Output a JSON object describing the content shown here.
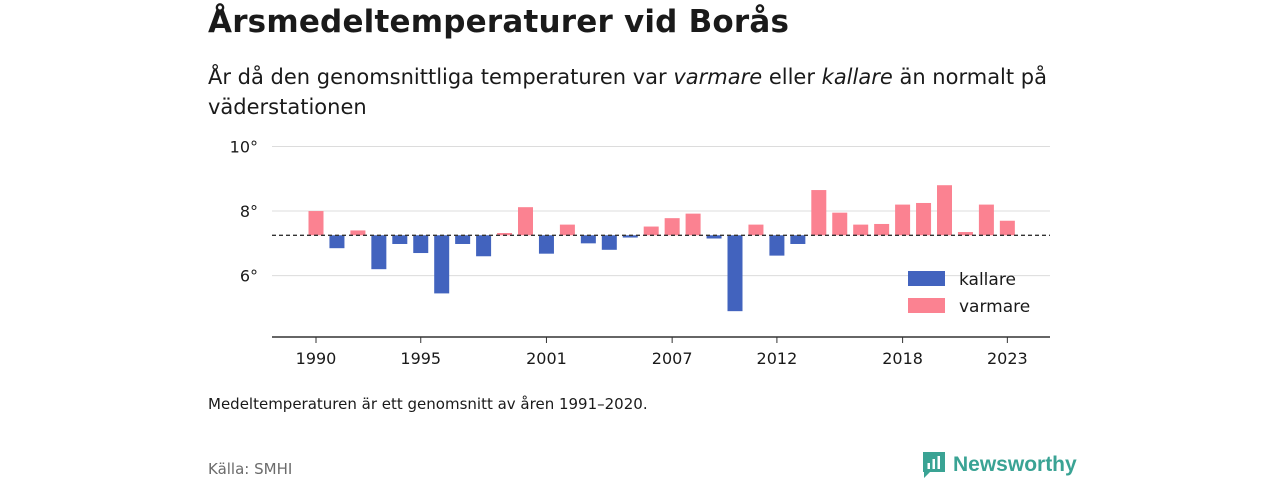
{
  "header": {
    "title": "Årsmedeltemperaturer vid Borås",
    "subtitle_part1": "År då den genomsnittliga temperaturen var ",
    "subtitle_em1": "varmare",
    "subtitle_part2": " eller ",
    "subtitle_em2": "kallare",
    "subtitle_part3": " än normalt på väderstationen"
  },
  "chart_data": {
    "type": "bar",
    "baseline": 7.25,
    "ylim": [
      4.1,
      10.2
    ],
    "yticks": [
      6,
      8,
      10
    ],
    "ytick_labels": [
      "6°",
      "8°",
      "10°"
    ],
    "x": [
      1990,
      1991,
      1992,
      1993,
      1994,
      1995,
      1996,
      1997,
      1998,
      1999,
      2000,
      2001,
      2002,
      2003,
      2004,
      2005,
      2006,
      2007,
      2008,
      2009,
      2010,
      2011,
      2012,
      2013,
      2014,
      2015,
      2016,
      2017,
      2018,
      2019,
      2020,
      2021,
      2022,
      2023
    ],
    "values": [
      8.0,
      6.85,
      7.4,
      6.2,
      6.98,
      6.7,
      5.45,
      6.98,
      6.6,
      7.32,
      8.12,
      6.68,
      7.58,
      7.0,
      6.8,
      7.18,
      7.52,
      7.78,
      7.92,
      7.15,
      4.9,
      7.58,
      6.62,
      6.98,
      8.65,
      7.95,
      7.58,
      7.6,
      8.2,
      8.25,
      8.8,
      7.35,
      8.2,
      7.7
    ],
    "xtick_labels": [
      "1990",
      "1995",
      "2001",
      "2007",
      "2012",
      "2018",
      "2023"
    ],
    "series": [
      {
        "name": "kallare",
        "color": "#4263be"
      },
      {
        "name": "varmare",
        "color": "#fb8291"
      }
    ],
    "legend_position": "bottom-right",
    "grid": true
  },
  "footer": {
    "note": "Medeltemperaturen är ett genomsnitt av åren 1991–2020.",
    "source": "Källa: SMHI",
    "brand": "Newsworthy",
    "brand_icon": "newsworthy-logo-icon"
  }
}
